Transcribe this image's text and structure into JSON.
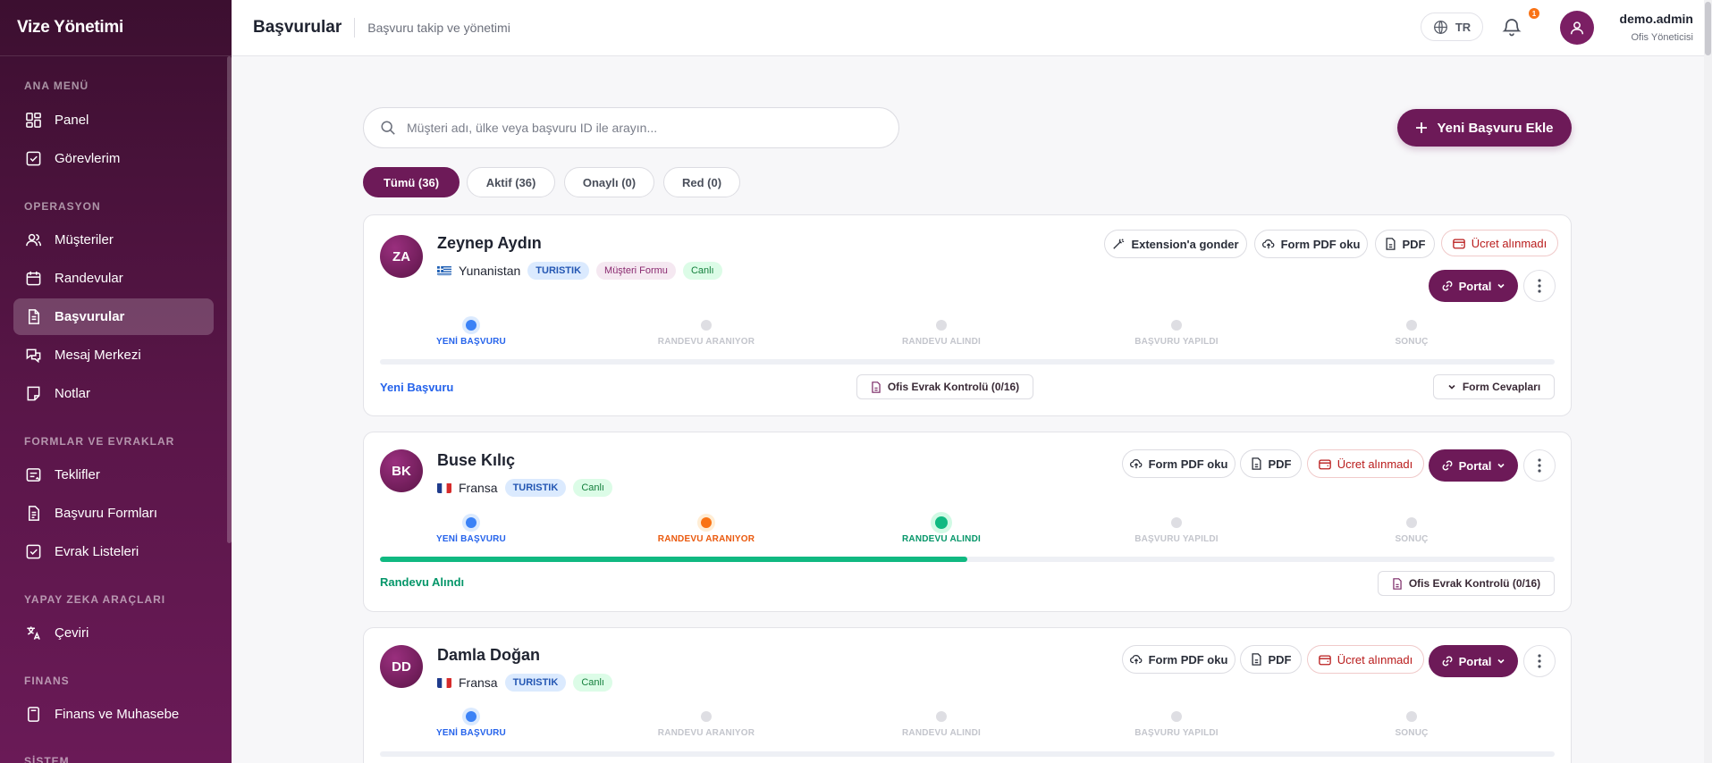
{
  "brand": "Vize Yönetimi",
  "sidebar": {
    "sections": [
      {
        "title": "ANA MENÜ"
      },
      {
        "title": "OPERASYON"
      },
      {
        "title": "FORMLAR VE EVRAKLAR"
      },
      {
        "title": "YAPAY ZEKA ARAÇLARI"
      },
      {
        "title": "FINANS"
      },
      {
        "title": "SİSTEM"
      }
    ],
    "items": [
      {
        "label": "Panel",
        "icon": "dashboard-icon"
      },
      {
        "label": "Görevlerim",
        "icon": "checkbox-icon"
      },
      {
        "label": "Müşteriler",
        "icon": "users-icon"
      },
      {
        "label": "Randevular",
        "icon": "calendar-icon"
      },
      {
        "label": "Başvurular",
        "icon": "document-icon",
        "active": true
      },
      {
        "label": "Mesaj Merkezi",
        "icon": "messages-icon"
      },
      {
        "label": "Notlar",
        "icon": "note-icon"
      },
      {
        "label": "Teklifler",
        "icon": "offer-icon"
      },
      {
        "label": "Başvuru Formları",
        "icon": "form-icon"
      },
      {
        "label": "Evrak Listeleri",
        "icon": "checklist-icon"
      },
      {
        "label": "Çeviri",
        "icon": "translate-icon"
      },
      {
        "label": "Finans ve Muhasebe",
        "icon": "calculator-icon"
      }
    ]
  },
  "header": {
    "title": "Başvurular",
    "subtitle": "Başvuru takip ve yönetimi",
    "language": "TR",
    "notification_count": "1",
    "user_name": "demo.admin",
    "user_role": "Ofis Yöneticisi"
  },
  "search": {
    "placeholder": "Müşteri adı, ülke veya başvuru ID ile arayın..."
  },
  "new_button": "Yeni Başvuru Ekle",
  "filters": [
    "Tümü (36)",
    "Aktif (36)",
    "Onaylı (0)",
    "Red (0)"
  ],
  "steps": [
    "YENİ BAŞVURU",
    "RANDEVU ARANIYOR",
    "RANDEVU ALINDI",
    "BAŞVURU YAPILDI",
    "SONUÇ"
  ],
  "applications": [
    {
      "initials": "ZA",
      "name": "Zeynep Aydın",
      "country": "Yunanistan",
      "tags": [
        "TURISTIK",
        "Müşteri Formu",
        "Canlı"
      ],
      "actions": [
        "Extension'a gonder",
        "Form PDF oku",
        "PDF",
        "Ücret alınmadı"
      ],
      "portal": "Portal",
      "progress": 0,
      "status": "Yeni Başvuru",
      "doc_check": "Ofis Evrak Kontrolü (0/16)",
      "form_answers": "Form Cevapları"
    },
    {
      "initials": "BK",
      "name": "Buse Kılıç",
      "country": "Fransa",
      "tags": [
        "TURISTIK",
        "Canlı"
      ],
      "actions": [
        "Form PDF oku",
        "PDF",
        "Ücret alınmadı"
      ],
      "portal": "Portal",
      "progress": 0.5,
      "status": "Randevu Alındı",
      "doc_check": "Ofis Evrak Kontrolü (0/16)"
    },
    {
      "initials": "DD",
      "name": "Damla Doğan",
      "country": "Fransa",
      "tags": [
        "TURISTIK",
        "Canlı"
      ],
      "actions": [
        "Form PDF oku",
        "PDF",
        "Ücret alınmadı"
      ],
      "portal": "Portal",
      "progress": 0
    }
  ],
  "colors": {
    "brand": "#6d1a58",
    "blue": "#3b82f6",
    "orange": "#f97316",
    "green": "#10b981"
  }
}
